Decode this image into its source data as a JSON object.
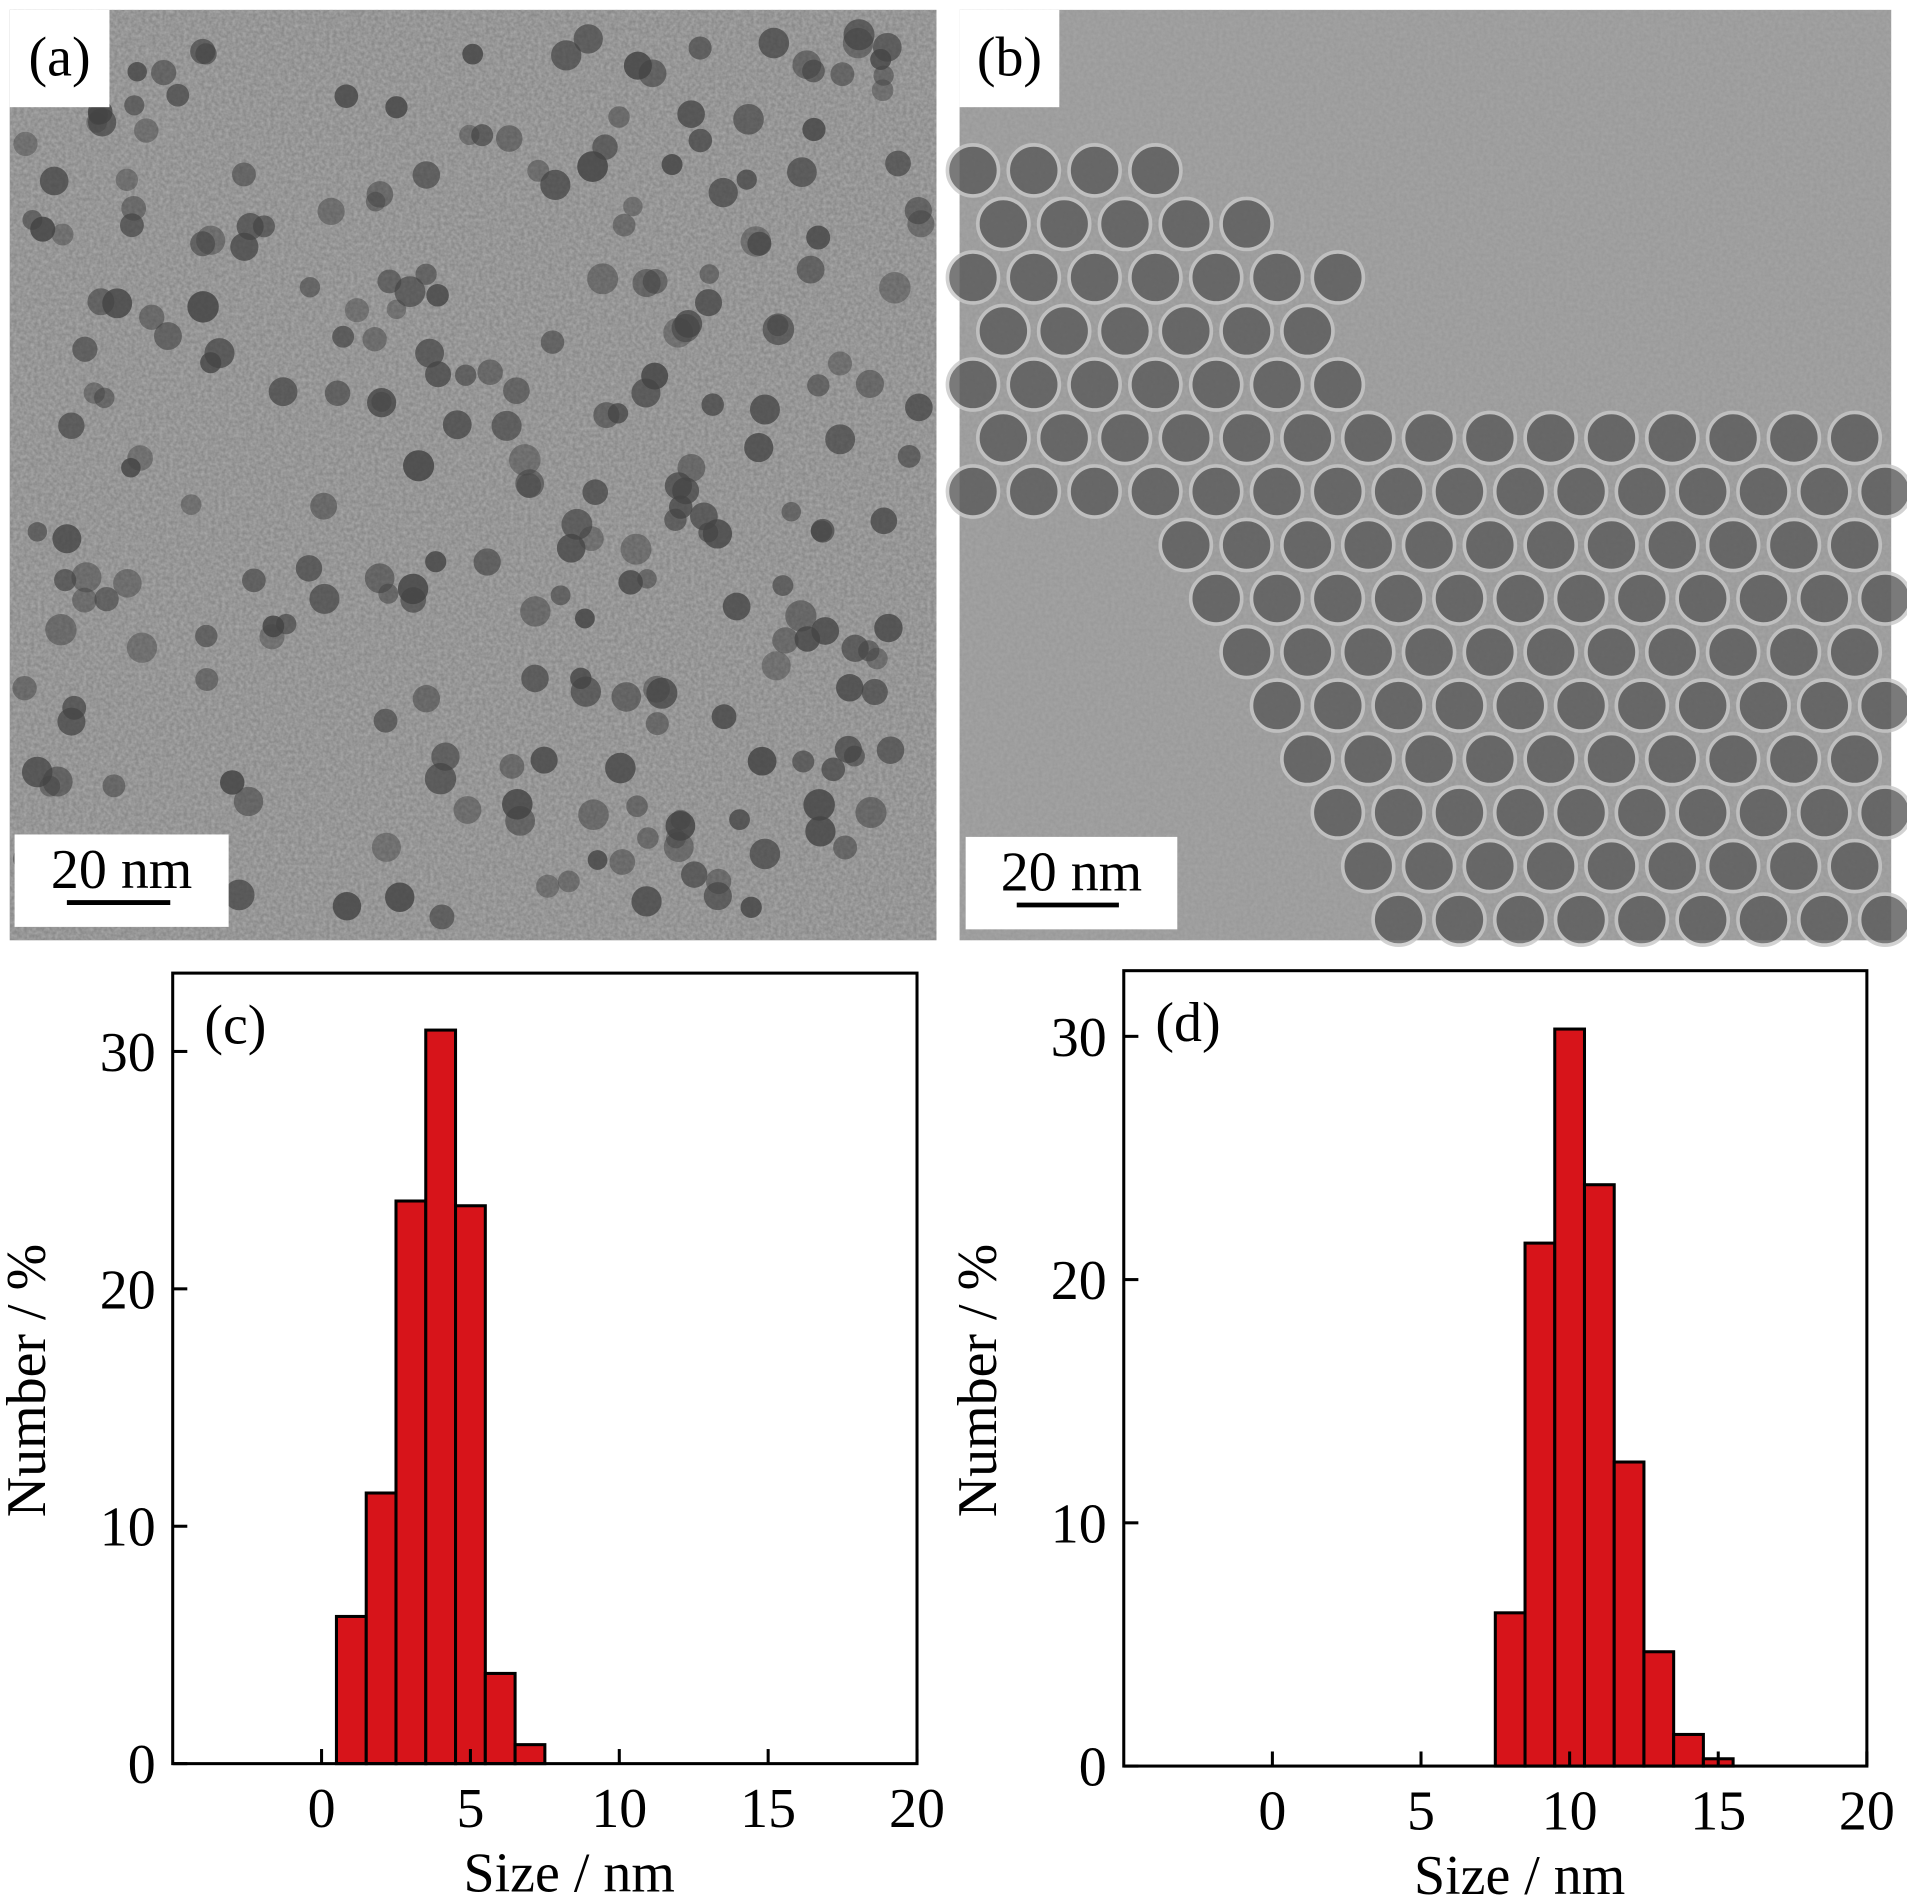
{
  "images": [
    {
      "label": "(a)",
      "scale_bar": "20 nm"
    },
    {
      "label": "(b)",
      "scale_bar": "20 nm"
    }
  ],
  "chart_data": [
    {
      "type": "histogram",
      "panel_label": "(c)",
      "bins": [
        0.5,
        1.5,
        2.5,
        3.5,
        4.5,
        5.5,
        6.5,
        7.5
      ],
      "values": [
        6.2,
        11.4,
        23.7,
        30.9,
        23.5,
        3.8,
        0.8
      ],
      "color": "#d7141a",
      "xlim": [
        -5,
        20
      ],
      "xticks": [
        0,
        5,
        10,
        15,
        20
      ],
      "ylim": [
        0,
        33.3
      ],
      "yticks": [
        0,
        10,
        20,
        30
      ],
      "xlabel": "Size / nm",
      "ylabel": "Number / %"
    },
    {
      "type": "histogram",
      "panel_label": "(d)",
      "bins": [
        7.5,
        8.5,
        9.5,
        10.5,
        11.5,
        12.5,
        13.5,
        14.5,
        15.5
      ],
      "values": [
        6.3,
        21.5,
        30.3,
        23.9,
        12.5,
        4.7,
        1.3,
        0.3
      ],
      "color": "#d7141a",
      "xlim": [
        -5,
        20
      ],
      "xticks": [
        0,
        5,
        10,
        15,
        20
      ],
      "ylim": [
        0,
        32.7
      ],
      "yticks": [
        0,
        10,
        20,
        30
      ],
      "xlabel": "Size / nm",
      "ylabel": "Number / %"
    }
  ]
}
